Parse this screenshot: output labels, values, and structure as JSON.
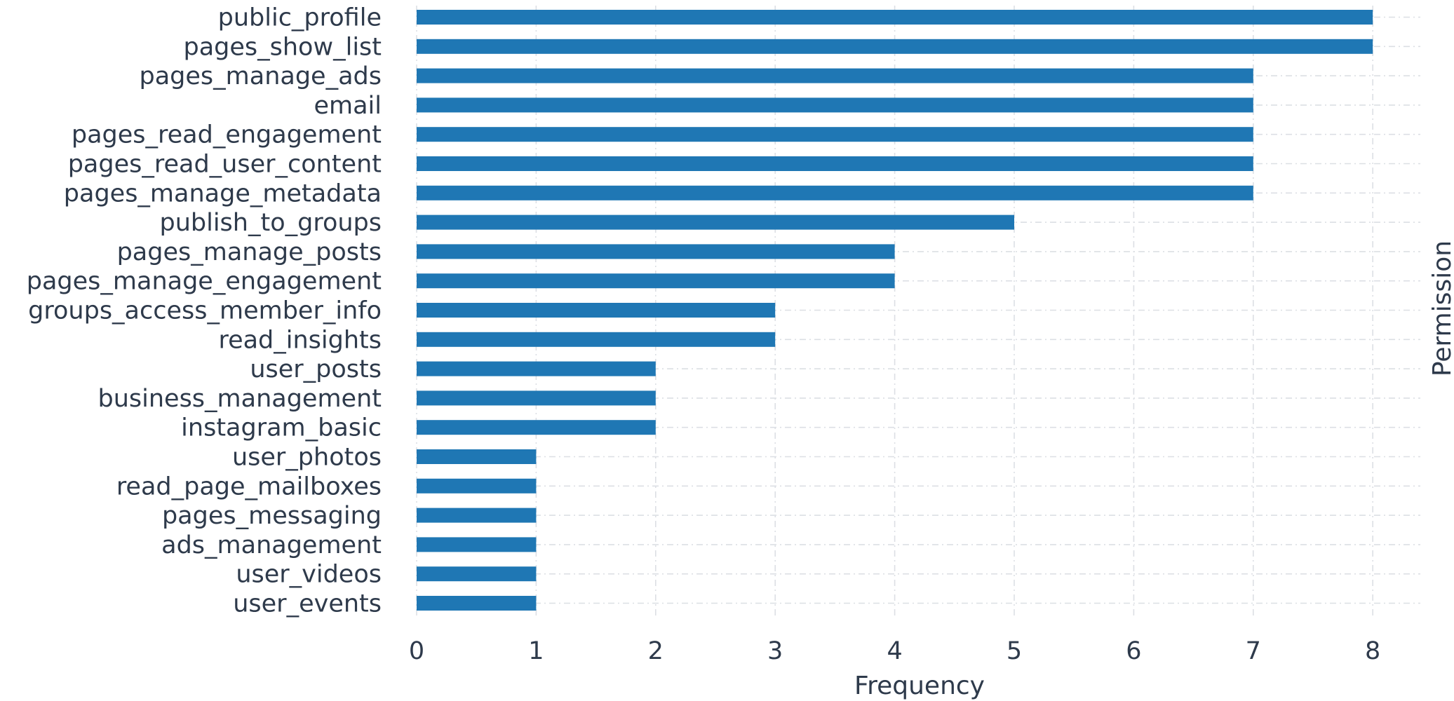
{
  "chart_data": {
    "type": "bar",
    "orientation": "horizontal",
    "xlabel": "Frequency",
    "ylabel": "Permission",
    "xlim": [
      0,
      8.4
    ],
    "xticks": [
      0,
      1,
      2,
      3,
      4,
      5,
      6,
      7,
      8
    ],
    "grid": true,
    "bar_color": "#1f77b4",
    "categories": [
      "public_profile",
      "pages_show_list",
      "pages_manage_ads",
      "email",
      "pages_read_engagement",
      "pages_read_user_content",
      "pages_manage_metadata",
      "publish_to_groups",
      "pages_manage_posts",
      "pages_manage_engagement",
      "groups_access_member_info",
      "read_insights",
      "user_posts",
      "business_management",
      "instagram_basic",
      "user_photos",
      "read_page_mailboxes",
      "pages_messaging",
      "ads_management",
      "user_videos",
      "user_events"
    ],
    "values": [
      8,
      8,
      7,
      7,
      7,
      7,
      7,
      5,
      4,
      4,
      3,
      3,
      2,
      2,
      2,
      1,
      1,
      1,
      1,
      1,
      1
    ]
  }
}
